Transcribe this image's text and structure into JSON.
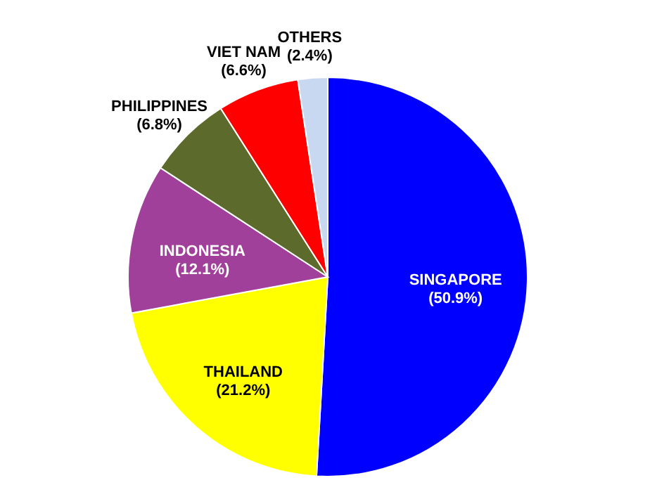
{
  "chart_data": {
    "type": "pie",
    "categories": [
      "SINGAPORE",
      "THAILAND",
      "INDONESIA",
      "PHILIPPINES",
      "VIET NAM",
      "OTHERS"
    ],
    "values": [
      50.9,
      21.2,
      12.1,
      6.8,
      6.6,
      2.4
    ],
    "value_labels": [
      "(50.9%)",
      "(21.2%)",
      "(12.1%)",
      "(6.8%)",
      "(6.6%)",
      "(2.4%)"
    ],
    "colors": [
      "#0000ff",
      "#ffff00",
      "#a0409a",
      "#5c6b2c",
      "#ff0000",
      "#c8d8f0"
    ]
  }
}
